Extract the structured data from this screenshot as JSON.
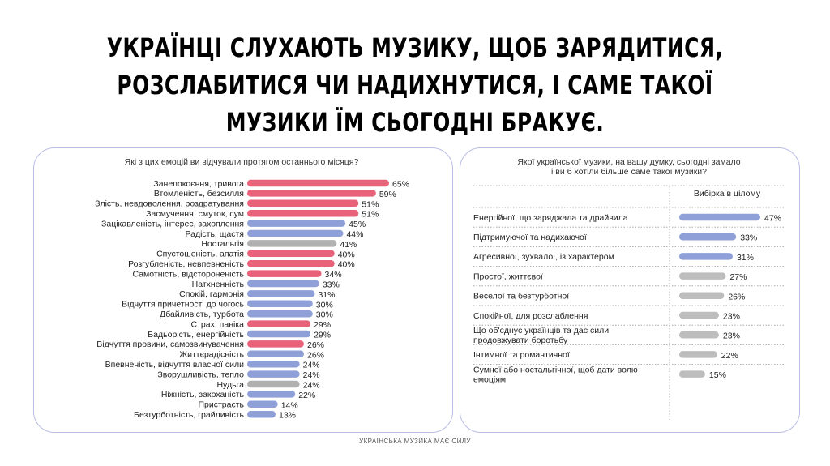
{
  "headline": {
    "line1": "УКРАЇНЦІ СЛУХАЮТЬ МУЗИКУ, ЩОБ ЗАРЯДИТИСЯ,",
    "line2": "РОЗСЛАБИТИСЯ ЧИ НАДИХНУТИСЯ, І САМЕ ТАКОЇ",
    "line3": "МУЗИКИ ЇМ СЬОГОДНІ БРАКУЄ."
  },
  "footer": "УКРАЇНСЬКА МУЗИКА МАЄ СИЛУ",
  "colors": {
    "negative": "#e8627a",
    "positive": "#8fa0d8",
    "neutral": "#b0b0b0",
    "grey_bar": "#bdbdbd",
    "panel_border": "#b9bee3"
  },
  "chart_data": [
    {
      "type": "bar",
      "orientation": "horizontal",
      "title": "Які з цих емоцій ви відчували протягом останнього місяця?",
      "xlim": [
        0,
        65
      ],
      "unit": "%",
      "categories": [
        "Занепокоєння, тривога",
        "Втомленість, безсилля",
        "Злість, невдоволення, роздратування",
        "Засмучення, смуток, сум",
        "Зацікавленість, інтерес, захоплення",
        "Радість, щастя",
        "Ностальгія",
        "Спустошеність, апатія",
        "Розгубленість, невпевненість",
        "Самотність, відстороненість",
        "Натхненність",
        "Спокій, гармонія",
        "Відчуття причетності до чогось",
        "Дбайливість, турбота",
        "Страх, паніка",
        "Бадьорість, енергійність",
        "Відчуття провини, самозвинувачення",
        "Життєрадісність",
        "Впевненість, відчуття власної сили",
        "Зворушливість, тепло",
        "Нудьга",
        "Ніжність, закоханість",
        "Пристрасть",
        "Безтурботність, грайливість"
      ],
      "values": [
        65,
        59,
        51,
        51,
        45,
        44,
        41,
        40,
        40,
        34,
        33,
        31,
        30,
        30,
        29,
        29,
        26,
        26,
        24,
        24,
        24,
        22,
        14,
        13
      ],
      "labels": [
        "65%",
        "59%",
        "51%",
        "51%",
        "45%",
        "44%",
        "41%",
        "40%",
        "40%",
        "34%",
        "33%",
        "31%",
        "30%",
        "30%",
        "29%",
        "29%",
        "26%",
        "26%",
        "24%",
        "24%",
        "24%",
        "22%",
        "14%",
        "13%"
      ],
      "tone": [
        "negative",
        "negative",
        "negative",
        "negative",
        "positive",
        "positive",
        "neutral",
        "negative",
        "negative",
        "negative",
        "positive",
        "positive",
        "positive",
        "positive",
        "negative",
        "positive",
        "negative",
        "positive",
        "positive",
        "positive",
        "neutral",
        "positive",
        "positive",
        "positive"
      ]
    },
    {
      "type": "bar",
      "orientation": "horizontal",
      "title": "Якої української музики, на вашу думку, сьогодні замало і ви б хотіли більше саме такої музики?",
      "title_lines": [
        "Якої української музики, на вашу думку, сьогодні замало",
        "і ви б хотіли більше саме такої музики?"
      ],
      "column_header": "Вибірка в цілому",
      "xlim": [
        0,
        47
      ],
      "unit": "%",
      "categories": [
        "Енергійної, що заряджала та драйвила",
        "Підтримуючої та надихаючої",
        "Агресивної, зухвалої, із характером",
        "Простої, життєвої",
        "Веселої та безтурботної",
        "Спокійної, для розслаблення",
        "Що об'єднує українців та дає сили продовжувати боротьбу",
        "Інтимної та романтичної",
        "Сумної або ностальгічної, щоб дати волю емоціям"
      ],
      "category_lines": [
        [
          "Енергійної, що заряджала та драйвила"
        ],
        [
          "Підтримуючої та надихаючої"
        ],
        [
          "Агресивної, зухвалої, із характером"
        ],
        [
          "Простої, життєвої"
        ],
        [
          "Веселої та безтурботної"
        ],
        [
          "Спокійної, для розслаблення"
        ],
        [
          "Що об'єднує українців та дає сили",
          "продовжувати боротьбу"
        ],
        [
          "Інтимної та романтичної"
        ],
        [
          "Сумної або ностальгічної, щоб дати волю",
          "емоціям"
        ]
      ],
      "values": [
        47,
        33,
        31,
        27,
        26,
        23,
        23,
        22,
        15
      ],
      "labels": [
        "47%",
        "33%",
        "31%",
        "27%",
        "26%",
        "23%",
        "23%",
        "22%",
        "15%"
      ],
      "tone": [
        "positive",
        "positive",
        "positive",
        "grey",
        "grey",
        "grey",
        "grey",
        "grey",
        "grey"
      ]
    }
  ]
}
